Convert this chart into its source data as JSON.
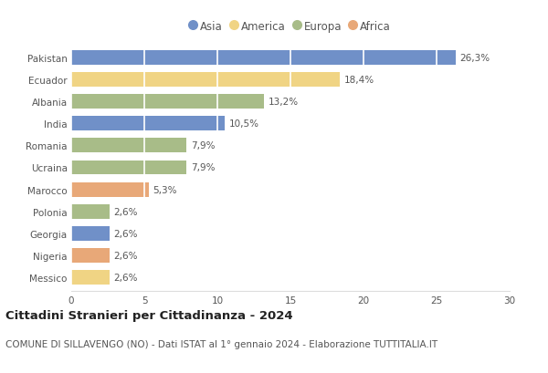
{
  "countries": [
    "Pakistan",
    "Ecuador",
    "Albania",
    "India",
    "Romania",
    "Ucraina",
    "Marocco",
    "Polonia",
    "Georgia",
    "Nigeria",
    "Messico"
  ],
  "values": [
    26.3,
    18.4,
    13.2,
    10.5,
    7.9,
    7.9,
    5.3,
    2.6,
    2.6,
    2.6,
    2.6
  ],
  "continents": [
    "Asia",
    "America",
    "Europa",
    "Asia",
    "Europa",
    "Europa",
    "Africa",
    "Europa",
    "Asia",
    "Africa",
    "America"
  ],
  "colors": {
    "Asia": "#7090c8",
    "America": "#f0d484",
    "Europa": "#a8bc88",
    "Africa": "#e8a878"
  },
  "legend_order": [
    "Asia",
    "America",
    "Europa",
    "Africa"
  ],
  "title": "Cittadini Stranieri per Cittadinanza - 2024",
  "subtitle": "COMUNE DI SILLAVENGO (NO) - Dati ISTAT al 1° gennaio 2024 - Elaborazione TUTTITALIA.IT",
  "xlim": [
    0,
    30
  ],
  "xticks": [
    0,
    5,
    10,
    15,
    20,
    25,
    30
  ],
  "bg_color": "#ffffff",
  "plot_bg_color": "#ffffff",
  "bar_height": 0.65,
  "title_fontsize": 9.5,
  "subtitle_fontsize": 7.5,
  "label_fontsize": 7.5,
  "tick_fontsize": 7.5,
  "legend_fontsize": 8.5
}
